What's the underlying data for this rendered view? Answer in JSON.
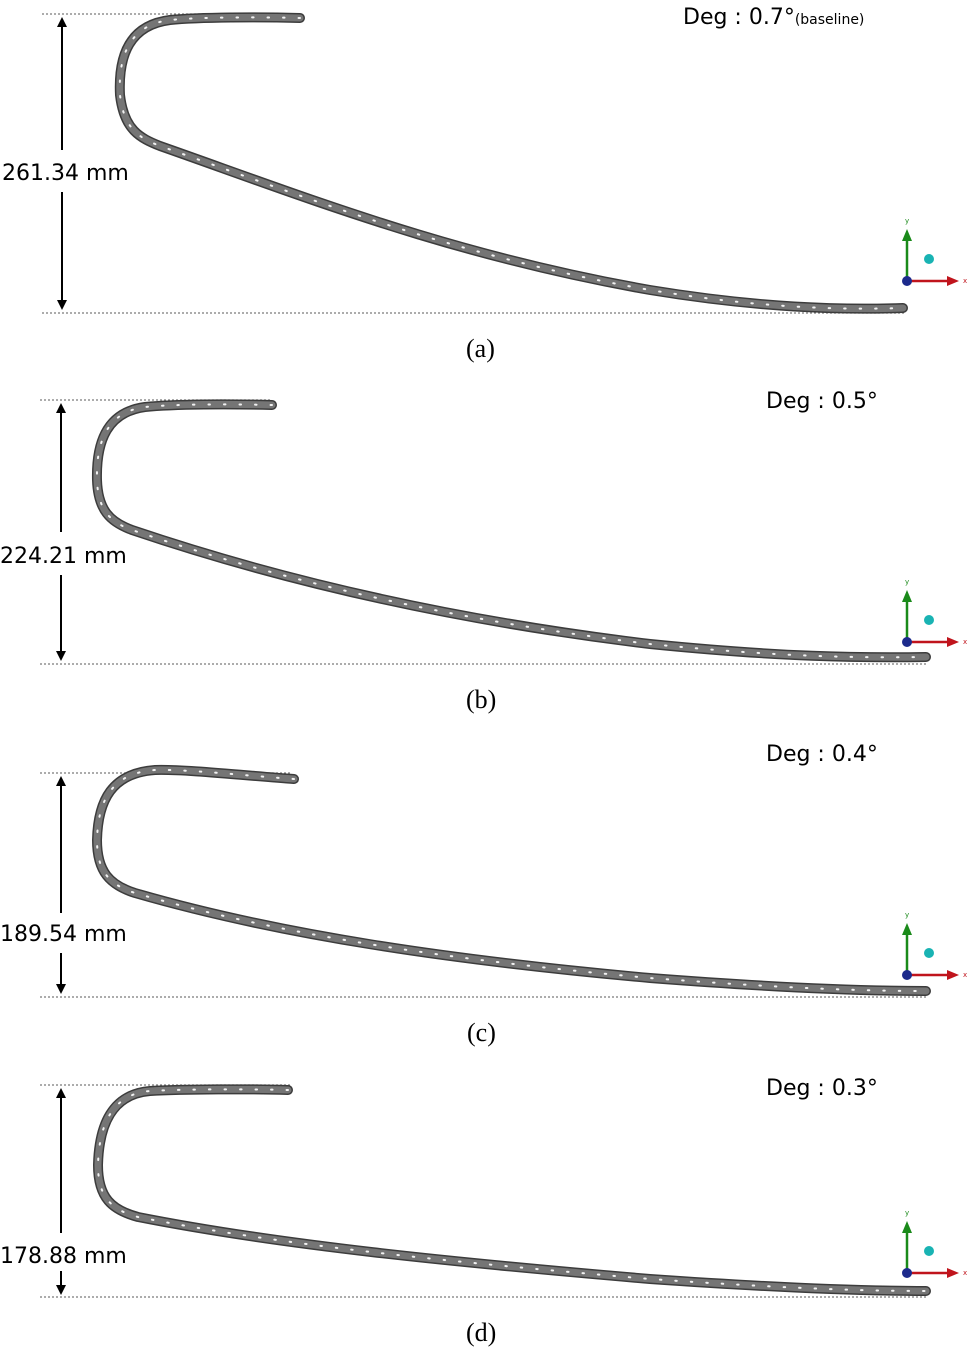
{
  "panels": [
    {
      "id": "a",
      "caption": "(a)",
      "height_label": "261.34 mm",
      "deg_label": "Deg : 0.7°",
      "deg_note": "(baseline)",
      "height_mm": 261.34,
      "angle_deg": 0.7
    },
    {
      "id": "b",
      "caption": "(b)",
      "height_label": "224.21 mm",
      "deg_label": "Deg : 0.5°",
      "deg_note": "",
      "height_mm": 224.21,
      "angle_deg": 0.5
    },
    {
      "id": "c",
      "caption": "(c)",
      "height_label": "189.54 mm",
      "deg_label": "Deg : 0.4°",
      "deg_note": "",
      "height_mm": 189.54,
      "angle_deg": 0.4
    },
    {
      "id": "d",
      "caption": "(d)",
      "height_label": "178.88 mm",
      "deg_label": "Deg : 0.3°",
      "deg_note": "",
      "height_mm": 178.88,
      "angle_deg": 0.3
    }
  ],
  "triad": {
    "x_label": "x",
    "y_label": "y",
    "x_color": "#c0141c",
    "y_color": "#1a8a1a",
    "origin_color": "#1c2a8c",
    "ball_color": "#19b3b3"
  },
  "colors": {
    "chain": "#6e6e6e",
    "chain_edge": "#3c3c3c",
    "pin": "#f2f2f2",
    "guide": "#7a7a7a"
  }
}
